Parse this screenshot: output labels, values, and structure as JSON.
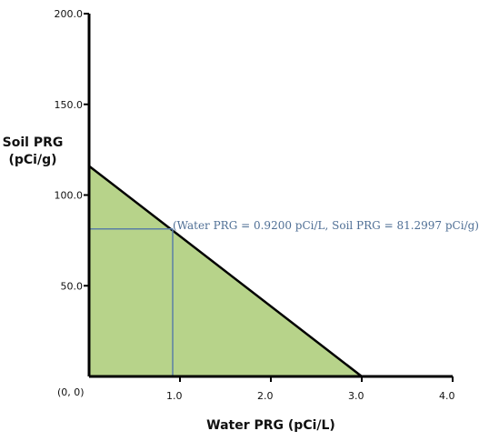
{
  "chart_data": {
    "type": "area",
    "xlabel": "Water PRG (pCi/L)",
    "ylabel_lines": [
      "Soil PRG",
      "(pCi/g)"
    ],
    "origin_label": "(0, 0)",
    "xlim": [
      0,
      4.0
    ],
    "ylim": [
      0,
      200.0
    ],
    "x_ticks": [
      1.0,
      2.0,
      3.0,
      4.0
    ],
    "x_tick_labels": [
      "1.0",
      "2.0",
      "3.0",
      "4.0"
    ],
    "y_ticks": [
      50.0,
      100.0,
      150.0,
      200.0
    ],
    "y_tick_labels": [
      "50.0",
      "100.0",
      "150.0",
      "200.0"
    ],
    "line": {
      "x": [
        0,
        3.0
      ],
      "y": [
        116.0,
        0
      ]
    },
    "point": {
      "x": 0.92,
      "y": 81.2997
    },
    "annotation": "(Water PRG = 0.9200 pCi/L, Soil PRG = 81.2997 pCi/g)",
    "colors": {
      "fill": "#b7d38a",
      "line": "#000000",
      "guide": "#5b7fa6",
      "annotation": "#4f6f95"
    }
  }
}
